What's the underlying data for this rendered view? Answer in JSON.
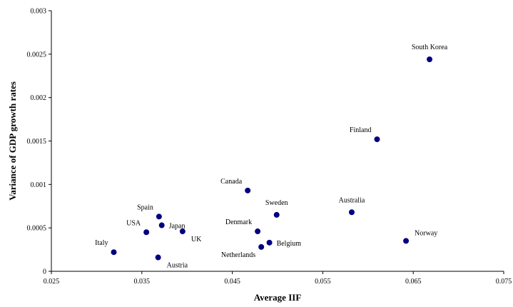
{
  "chart_data": {
    "type": "scatter",
    "xlabel": "Average IIF",
    "ylabel": "Variance of GDP growth rates",
    "xlim": [
      0.025,
      0.075
    ],
    "ylim": [
      0,
      0.003
    ],
    "x_ticks": [
      "0.025",
      "0.035",
      "0.045",
      "0.055",
      "0.065",
      "0.075"
    ],
    "y_ticks": [
      "0",
      "0.0005",
      "0.001",
      "0.0015",
      "0.002",
      "0.0025",
      "0.003"
    ],
    "grid": false,
    "marker_color": "#000080",
    "points": [
      {
        "label": "South Korea",
        "x": 0.0668,
        "y": 0.00244,
        "label_pos": "above"
      },
      {
        "label": "Finland",
        "x": 0.061,
        "y": 0.00152,
        "label_pos": "above-left"
      },
      {
        "label": "Canada",
        "x": 0.0467,
        "y": 0.00093,
        "label_pos": "above-left"
      },
      {
        "label": "Australia",
        "x": 0.0582,
        "y": 0.00068,
        "label_pos": "above"
      },
      {
        "label": "Sweden",
        "x": 0.0499,
        "y": 0.00065,
        "label_pos": "above"
      },
      {
        "label": "Spain",
        "x": 0.0369,
        "y": 0.00063,
        "label_pos": "above-left"
      },
      {
        "label": "Japan",
        "x": 0.0372,
        "y": 0.00053,
        "label_pos": "right"
      },
      {
        "label": "Denmark",
        "x": 0.0478,
        "y": 0.00046,
        "label_pos": "above-left"
      },
      {
        "label": "UK",
        "x": 0.0395,
        "y": 0.00046,
        "label_pos": "below-right"
      },
      {
        "label": "USA",
        "x": 0.0355,
        "y": 0.00045,
        "label_pos": "above-left"
      },
      {
        "label": "Norway",
        "x": 0.0642,
        "y": 0.00035,
        "label_pos": "above-right"
      },
      {
        "label": "Belgium",
        "x": 0.0491,
        "y": 0.00033,
        "label_pos": "right"
      },
      {
        "label": "Netherlands",
        "x": 0.0482,
        "y": 0.00028,
        "label_pos": "below-left"
      },
      {
        "label": "Italy",
        "x": 0.0319,
        "y": 0.00022,
        "label_pos": "above-left"
      },
      {
        "label": "Austria",
        "x": 0.0368,
        "y": 0.00016,
        "label_pos": "below-right"
      }
    ]
  }
}
